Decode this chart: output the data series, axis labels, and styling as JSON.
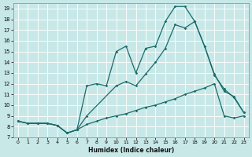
{
  "xlabel": "Humidex (Indice chaleur)",
  "bg_color": "#c8e8e8",
  "grid_color": "#ffffff",
  "line_color": "#1a6b6b",
  "xlim": [
    -0.5,
    23.5
  ],
  "ylim": [
    7,
    19.5
  ],
  "yticks": [
    7,
    8,
    9,
    10,
    11,
    12,
    13,
    14,
    15,
    16,
    17,
    18,
    19
  ],
  "xticks": [
    0,
    1,
    2,
    3,
    4,
    5,
    6,
    7,
    8,
    9,
    10,
    11,
    12,
    13,
    14,
    15,
    16,
    17,
    18,
    19,
    20,
    21,
    22,
    23
  ],
  "line1_x": [
    0,
    1,
    2,
    3,
    4,
    5,
    6,
    7,
    8,
    9,
    10,
    11,
    12,
    13,
    14,
    15,
    16,
    17,
    18,
    19,
    20,
    21,
    22,
    23
  ],
  "line1_y": [
    8.5,
    8.3,
    8.3,
    8.3,
    8.1,
    7.4,
    7.7,
    8.2,
    8.5,
    8.8,
    9.0,
    9.2,
    9.5,
    9.8,
    10.0,
    10.3,
    10.6,
    11.0,
    11.3,
    11.6,
    12.0,
    9.0,
    8.8,
    9.0
  ],
  "line2_x": [
    0,
    1,
    2,
    3,
    4,
    5,
    6,
    7,
    8,
    9,
    10,
    11,
    12,
    13,
    14,
    15,
    16,
    17,
    18,
    19,
    20,
    21,
    22,
    23
  ],
  "line2_y": [
    8.5,
    8.3,
    8.3,
    8.3,
    8.1,
    7.4,
    7.7,
    11.8,
    12.0,
    11.8,
    15.0,
    15.5,
    13.0,
    15.3,
    15.5,
    17.8,
    19.2,
    19.2,
    17.8,
    15.5,
    12.9,
    11.3,
    10.8,
    9.3
  ],
  "line3_x": [
    0,
    1,
    2,
    3,
    4,
    5,
    6,
    7,
    10,
    11,
    12,
    13,
    14,
    15,
    16,
    17,
    18,
    19,
    20,
    21,
    22,
    23
  ],
  "line3_y": [
    8.5,
    8.3,
    8.3,
    8.3,
    8.1,
    7.4,
    7.7,
    9.0,
    11.8,
    12.2,
    11.8,
    12.9,
    14.0,
    15.3,
    17.5,
    17.2,
    17.8,
    15.5,
    12.8,
    11.5,
    10.7,
    9.3
  ]
}
